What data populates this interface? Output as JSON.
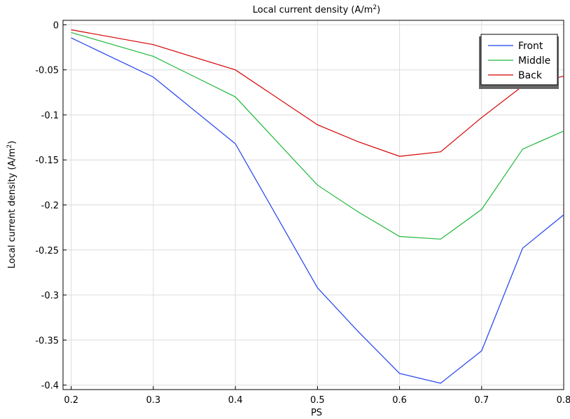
{
  "chart_data": {
    "type": "line",
    "title": {
      "main": "Local current density (A/m",
      "sup": "2",
      "end": ")"
    },
    "xlabel": "PS",
    "ylabel": {
      "main": "Local current density (A/m",
      "sup": "2",
      "end": ")"
    },
    "xlim": [
      0.19,
      0.8
    ],
    "ylim": [
      -0.405,
      0.005
    ],
    "xticks": [
      0.2,
      0.3,
      0.4,
      0.5,
      0.6,
      0.7,
      0.8
    ],
    "xtick_labels": [
      "0.2",
      "0.3",
      "0.4",
      "0.5",
      "0.6",
      "0.7",
      "0.8"
    ],
    "yticks": [
      0,
      -0.05,
      -0.1,
      -0.15,
      -0.2,
      -0.25,
      -0.3,
      -0.35,
      -0.4
    ],
    "ytick_labels": [
      "0",
      "-0.05",
      "-0.1",
      "-0.15",
      "-0.2",
      "-0.25",
      "-0.3",
      "-0.35",
      "-0.4"
    ],
    "grid": true,
    "legend_position": "top-right",
    "x": [
      0.2,
      0.3,
      0.4,
      0.5,
      0.55,
      0.6,
      0.65,
      0.7,
      0.75,
      0.8
    ],
    "series": [
      {
        "name": "Front",
        "color": "#1f3ff0",
        "values": [
          -0.0145,
          -0.058,
          -0.132,
          -0.292,
          -0.341,
          -0.387,
          -0.398,
          -0.362,
          -0.248,
          -0.211
        ]
      },
      {
        "name": "Middle",
        "color": "#1fb83a",
        "values": [
          -0.0085,
          -0.035,
          -0.08,
          -0.178,
          -0.208,
          -0.235,
          -0.238,
          -0.205,
          -0.138,
          -0.118
        ]
      },
      {
        "name": "Back",
        "color": "#d40000",
        "values": [
          -0.0055,
          -0.022,
          -0.05,
          -0.111,
          -0.13,
          -0.146,
          -0.141,
          -0.103,
          -0.068,
          -0.057
        ]
      }
    ]
  }
}
